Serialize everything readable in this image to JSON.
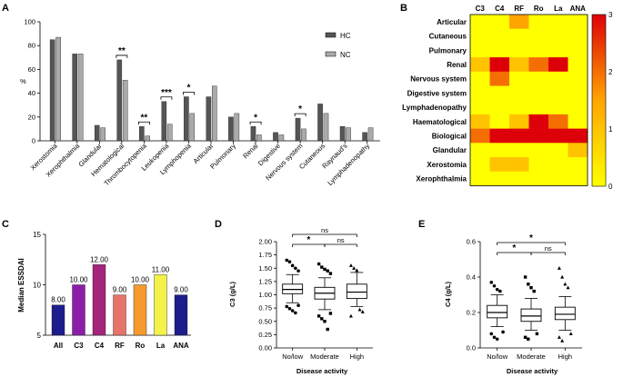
{
  "panels": {
    "A": "A",
    "B": "B",
    "C": "C",
    "D": "D",
    "E": "E"
  },
  "chart_data": [
    {
      "panel": "A",
      "type": "bar",
      "ylabel": "%",
      "ylim": [
        0,
        100
      ],
      "yticks": [
        "0",
        "20",
        "40",
        "60",
        "80",
        "100"
      ],
      "categories": [
        "Xerostomia",
        "Xerophthalmia",
        "Glandular",
        "Hematological",
        "Thrombocytopenia",
        "Leukopenia",
        "Lymphopenia",
        "Articular",
        "Pulmonary",
        "Renal",
        "Digestive",
        "Nervous system",
        "Cutaneous",
        "Raynaud's",
        "Lymphadenopathy"
      ],
      "series": [
        {
          "name": "HC",
          "color": "#555555",
          "values": [
            85,
            73,
            13,
            68,
            12,
            33,
            37,
            37,
            20,
            12,
            7,
            19,
            31,
            12,
            7
          ]
        },
        {
          "name": "NC",
          "color": "#aaaaaa",
          "values": [
            87,
            73,
            11,
            51,
            4,
            14,
            23,
            46,
            23,
            5,
            5,
            10,
            23,
            11,
            11
          ]
        }
      ],
      "significance": [
        {
          "category": "Hematological",
          "label": "**"
        },
        {
          "category": "Thrombocytopenia",
          "label": "**"
        },
        {
          "category": "Leukopenia",
          "label": "***"
        },
        {
          "category": "Lymphopenia",
          "label": "*"
        },
        {
          "category": "Renal",
          "label": "*"
        },
        {
          "category": "Nervous system",
          "label": "*"
        }
      ]
    },
    {
      "panel": "B",
      "type": "heatmap",
      "columns": [
        "C3",
        "C4",
        "RF",
        "Ro",
        "La",
        "ANA"
      ],
      "rows": [
        "Articular",
        "Cutaneous",
        "Pulmonary",
        "Renal",
        "Nervous system",
        "Digestive system",
        "Lymphadenopathy",
        "Haematological",
        "Biological",
        "Glandular",
        "Xerostomia",
        "Xerophthalmia"
      ],
      "values": [
        [
          0,
          0,
          1.5,
          0,
          0,
          0
        ],
        [
          0,
          0,
          0,
          0,
          0,
          0
        ],
        [
          0,
          0,
          0,
          0,
          0,
          0
        ],
        [
          1,
          3,
          1,
          2,
          3,
          0
        ],
        [
          0,
          2,
          0,
          0,
          0,
          0
        ],
        [
          0,
          0,
          0,
          0,
          0,
          0
        ],
        [
          0,
          0,
          0,
          0,
          0,
          0
        ],
        [
          1,
          0,
          1,
          3,
          2,
          0
        ],
        [
          2,
          3,
          3,
          3,
          3,
          3
        ],
        [
          0,
          0,
          0,
          0,
          0,
          1
        ],
        [
          0,
          1,
          1,
          0,
          0,
          0
        ],
        [
          0,
          0,
          0,
          0,
          0,
          0
        ]
      ],
      "colorbar": {
        "min": 0,
        "max": 3,
        "ticks": [
          "0",
          "1",
          "2",
          "3"
        ]
      }
    },
    {
      "panel": "C",
      "type": "bar",
      "ylabel": "Median ESSDAI",
      "ylim": [
        5,
        15
      ],
      "yticks": [
        "5",
        "10",
        "15"
      ],
      "categories": [
        "All",
        "C3",
        "C4",
        "RF",
        "Ro",
        "La",
        "ANA"
      ],
      "values": [
        8.0,
        10.0,
        12.0,
        9.0,
        10.0,
        11.0,
        9.0
      ],
      "data_labels": [
        "8.00",
        "10.00",
        "12.00",
        "9.00",
        "10.00",
        "11.00",
        "9.00"
      ],
      "colors": [
        "#1c1c8c",
        "#8b1ea8",
        "#a5247c",
        "#e8736a",
        "#f59a2c",
        "#f4f24a",
        "#1c1c8c"
      ]
    },
    {
      "panel": "D",
      "type": "box",
      "ylabel": "C3 (g/L)",
      "xlabel": "Disease activity",
      "ylim": [
        0,
        2.0
      ],
      "yticks": [
        "0.00",
        "0.25",
        "0.50",
        "0.75",
        "1.00",
        "1.25",
        "1.50",
        "1.75",
        "2.00"
      ],
      "categories": [
        "No/low",
        "Moderate",
        "High"
      ],
      "boxes": [
        {
          "min": 0.85,
          "q1": 1.02,
          "median": 1.1,
          "q3": 1.2,
          "max": 1.38
        },
        {
          "min": 0.72,
          "q1": 0.92,
          "median": 1.03,
          "q3": 1.14,
          "max": 1.32
        },
        {
          "min": 0.78,
          "q1": 0.93,
          "median": 1.05,
          "q3": 1.2,
          "max": 1.42
        }
      ],
      "outliers": [
        [
          1.65,
          1.62,
          1.55,
          1.5,
          1.45,
          0.78,
          0.74,
          0.7,
          0.66,
          0.8
        ],
        [
          1.58,
          1.52,
          1.48,
          1.45,
          1.4,
          0.6,
          0.55,
          0.5,
          0.35,
          0.65
        ],
        [
          1.55,
          1.5,
          1.46,
          0.72,
          0.68,
          0.6
        ]
      ],
      "significance": [
        {
          "from": "No/low",
          "to": "High",
          "label": "ns"
        },
        {
          "from": "No/low",
          "to": "Moderate",
          "label": "*"
        },
        {
          "from": "Moderate",
          "to": "High",
          "label": "ns"
        }
      ]
    },
    {
      "panel": "E",
      "type": "box",
      "ylabel": "C4 (g/L)",
      "xlabel": "Disease activity",
      "ylim": [
        0,
        0.6
      ],
      "yticks": [
        "0.0",
        "0.2",
        "0.4",
        "0.6"
      ],
      "categories": [
        "No/low",
        "Moderate",
        "High"
      ],
      "boxes": [
        {
          "min": 0.12,
          "q1": 0.17,
          "median": 0.2,
          "q3": 0.24,
          "max": 0.3
        },
        {
          "min": 0.1,
          "q1": 0.15,
          "median": 0.18,
          "q3": 0.22,
          "max": 0.28
        },
        {
          "min": 0.1,
          "q1": 0.16,
          "median": 0.19,
          "q3": 0.23,
          "max": 0.29
        }
      ],
      "outliers": [
        [
          0.37,
          0.35,
          0.33,
          0.32,
          0.09,
          0.08,
          0.06,
          0.05
        ],
        [
          0.4,
          0.36,
          0.34,
          0.32,
          0.08,
          0.06,
          0.05
        ],
        [
          0.45,
          0.4,
          0.36,
          0.34,
          0.08,
          0.06,
          0.04
        ]
      ],
      "significance": [
        {
          "from": "No/low",
          "to": "High",
          "label": "*"
        },
        {
          "from": "No/low",
          "to": "Moderate",
          "label": "*"
        },
        {
          "from": "Moderate",
          "to": "High",
          "label": "ns"
        }
      ]
    }
  ]
}
